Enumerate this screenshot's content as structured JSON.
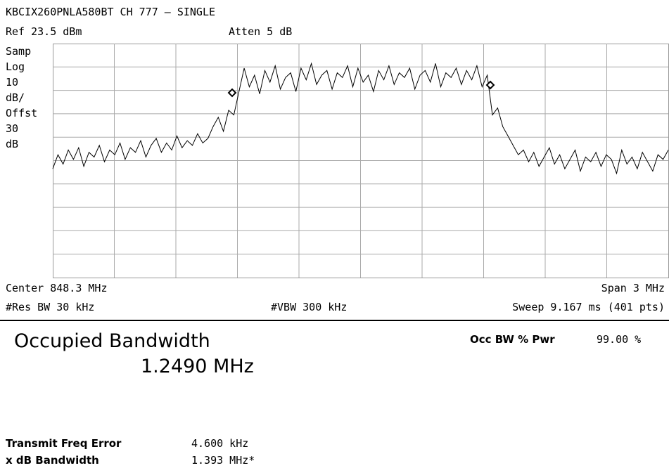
{
  "header": {
    "title": "KBCIX260PNLA580BT CH 777 – SINGLE",
    "ref_label": "Ref",
    "ref_level": 23.5,
    "ref_unit": "dBm",
    "atten": "Atten 5 dB"
  },
  "left_labels": [
    "Samp",
    "Log",
    "10",
    "dB/",
    "Offst",
    "30",
    "dB"
  ],
  "scale_per_div": 10,
  "trace": [
    -30,
    -24,
    -28,
    -22,
    -26,
    -21,
    -29,
    -23,
    -25,
    -20,
    -27,
    -22,
    -24,
    -19,
    -26,
    -21,
    -23,
    -18,
    -25,
    -20,
    -17,
    -23,
    -19,
    -22,
    -16,
    -21,
    -18,
    -20,
    -15,
    -19,
    -17,
    -12,
    -8,
    -14,
    -5,
    -7,
    3,
    13,
    5,
    10,
    2,
    12,
    7,
    14,
    4,
    9,
    11,
    3,
    13,
    8,
    15,
    6,
    10,
    12,
    4,
    11,
    9,
    14,
    5,
    13,
    7,
    10,
    3,
    12,
    8,
    14,
    6,
    11,
    9,
    13,
    4,
    10,
    12,
    7,
    15,
    5,
    11,
    9,
    13,
    6,
    12,
    8,
    14,
    5,
    10,
    -7,
    -4,
    -12,
    -16,
    -20,
    -24,
    -22,
    -27,
    -23,
    -29,
    -25,
    -21,
    -28,
    -24,
    -30,
    -26,
    -22,
    -31,
    -25,
    -27,
    -23,
    -29,
    -24,
    -26,
    -32,
    -22,
    -28,
    -25,
    -30,
    -23,
    -27,
    -31,
    -24,
    -26,
    -22
  ],
  "footer": {
    "center": "Center 848.3 MHz",
    "span": "Span 3 MHz",
    "res_bw": "#Res BW 30 kHz",
    "vbw": "#VBW 300 kHz",
    "sweep": "Sweep 9.167 ms (401 pts)"
  },
  "results": {
    "title": "Occupied Bandwidth",
    "value": "1.2490 MHz",
    "pwr_label": "Occ BW % Pwr",
    "pwr_value": "99.00 %",
    "rows": [
      [
        "Transmit Freq Error",
        "4.600 kHz"
      ],
      [
        "x dB Bandwidth",
        "1.393 MHz*"
      ]
    ]
  }
}
